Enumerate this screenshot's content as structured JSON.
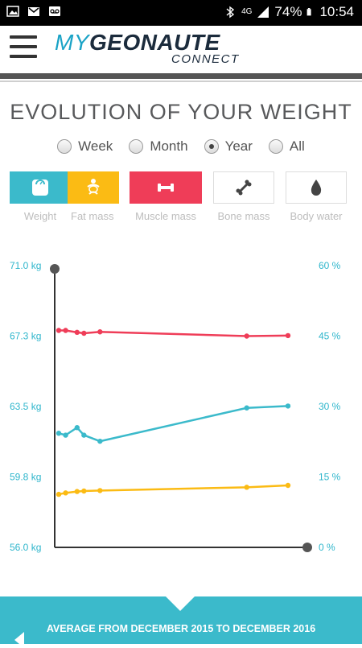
{
  "status_bar": {
    "network": "4G",
    "battery": "74%",
    "time": "10:54",
    "icons": [
      "gallery-icon",
      "gmail-icon",
      "voicemail-icon",
      "bluetooth-icon",
      "signal-icon",
      "battery-icon"
    ]
  },
  "app": {
    "logo_my": "MY",
    "logo_geonaute": "GEONAUTE",
    "logo_connect": "CONNECT"
  },
  "page_title": "EVOLUTION OF YOUR WEIGHT",
  "period": {
    "options": [
      "Week",
      "Month",
      "Year",
      "All"
    ],
    "selected": "Year"
  },
  "metrics": [
    {
      "label": "Weight",
      "color": "#3bbacb",
      "icon": "scale-icon",
      "active": true
    },
    {
      "label": "Fat mass",
      "color": "#fbbb14",
      "icon": "body-fat-icon",
      "active": true
    },
    {
      "label": "Muscle mass",
      "color": "#ef3d58",
      "icon": "dumbbell-icon",
      "active": true
    },
    {
      "label": "Bone mass",
      "color": "#ffffff",
      "icon": "bone-icon",
      "active": false
    },
    {
      "label": "Body water",
      "color": "#ffffff",
      "icon": "water-drop-icon",
      "active": false
    }
  ],
  "chart_data": {
    "type": "line",
    "left_axis": {
      "ticks": [
        "71.0 kg",
        "67.3 kg",
        "63.5 kg",
        "59.8 kg",
        "56.0 kg"
      ],
      "range": [
        56.0,
        71.0
      ]
    },
    "right_axis": {
      "ticks": [
        "60 %",
        "45 %",
        "30 %",
        "15 %",
        "0 %"
      ],
      "range": [
        0,
        60
      ]
    },
    "x": [
      0,
      3,
      8,
      11,
      18,
      82,
      100
    ],
    "series": [
      {
        "color": "#ef3d58",
        "values": [
          46.2,
          46.2,
          45.8,
          45.6,
          45.9,
          45.0,
          45.1
        ]
      },
      {
        "color": "#3bbacb",
        "values": [
          24.3,
          23.9,
          25.5,
          23.9,
          22.6,
          29.7,
          30.1
        ]
      },
      {
        "color": "#fbbb14",
        "values": [
          11.3,
          11.6,
          11.9,
          12.0,
          12.1,
          12.8,
          13.2
        ]
      }
    ]
  },
  "banner": {
    "text": "AVERAGE FROM DECEMBER 2015 TO DECEMBER 2016"
  }
}
